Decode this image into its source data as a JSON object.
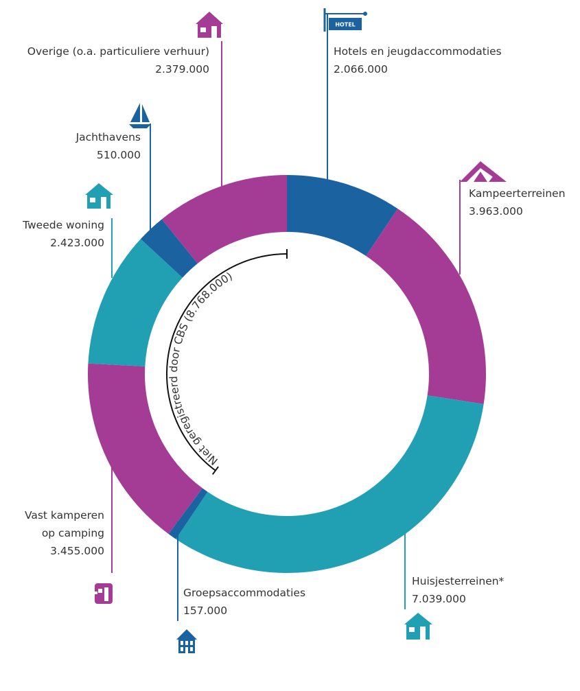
{
  "chart_data": {
    "type": "donut",
    "categories": [
      "Hotels en jeugdaccommodaties",
      "Kampeerterreinen",
      "Huisjesterreinen*",
      "Groepsaccommodaties",
      "Vast kamperen op camping",
      "Tweede woning",
      "Jachthavens",
      "Overige (o.a. particuliere verhuur)"
    ],
    "values": [
      2066000,
      3963000,
      7039000,
      157000,
      3455000,
      2423000,
      510000,
      2379000
    ],
    "value_labels": [
      "2.066.000",
      "3.963.000",
      "7.039.000",
      "157.000",
      "3.455.000",
      "2.423.000",
      "510.000",
      "2.379.000"
    ],
    "colors": [
      "#1b62a0",
      "#a43c96",
      "#21a0b3",
      "#1b62a0",
      "#a43c96",
      "#21a0b3",
      "#1b62a0",
      "#a43c96"
    ],
    "annotation": "Niet geregistreerd door CBS (8.768.000)"
  }
}
